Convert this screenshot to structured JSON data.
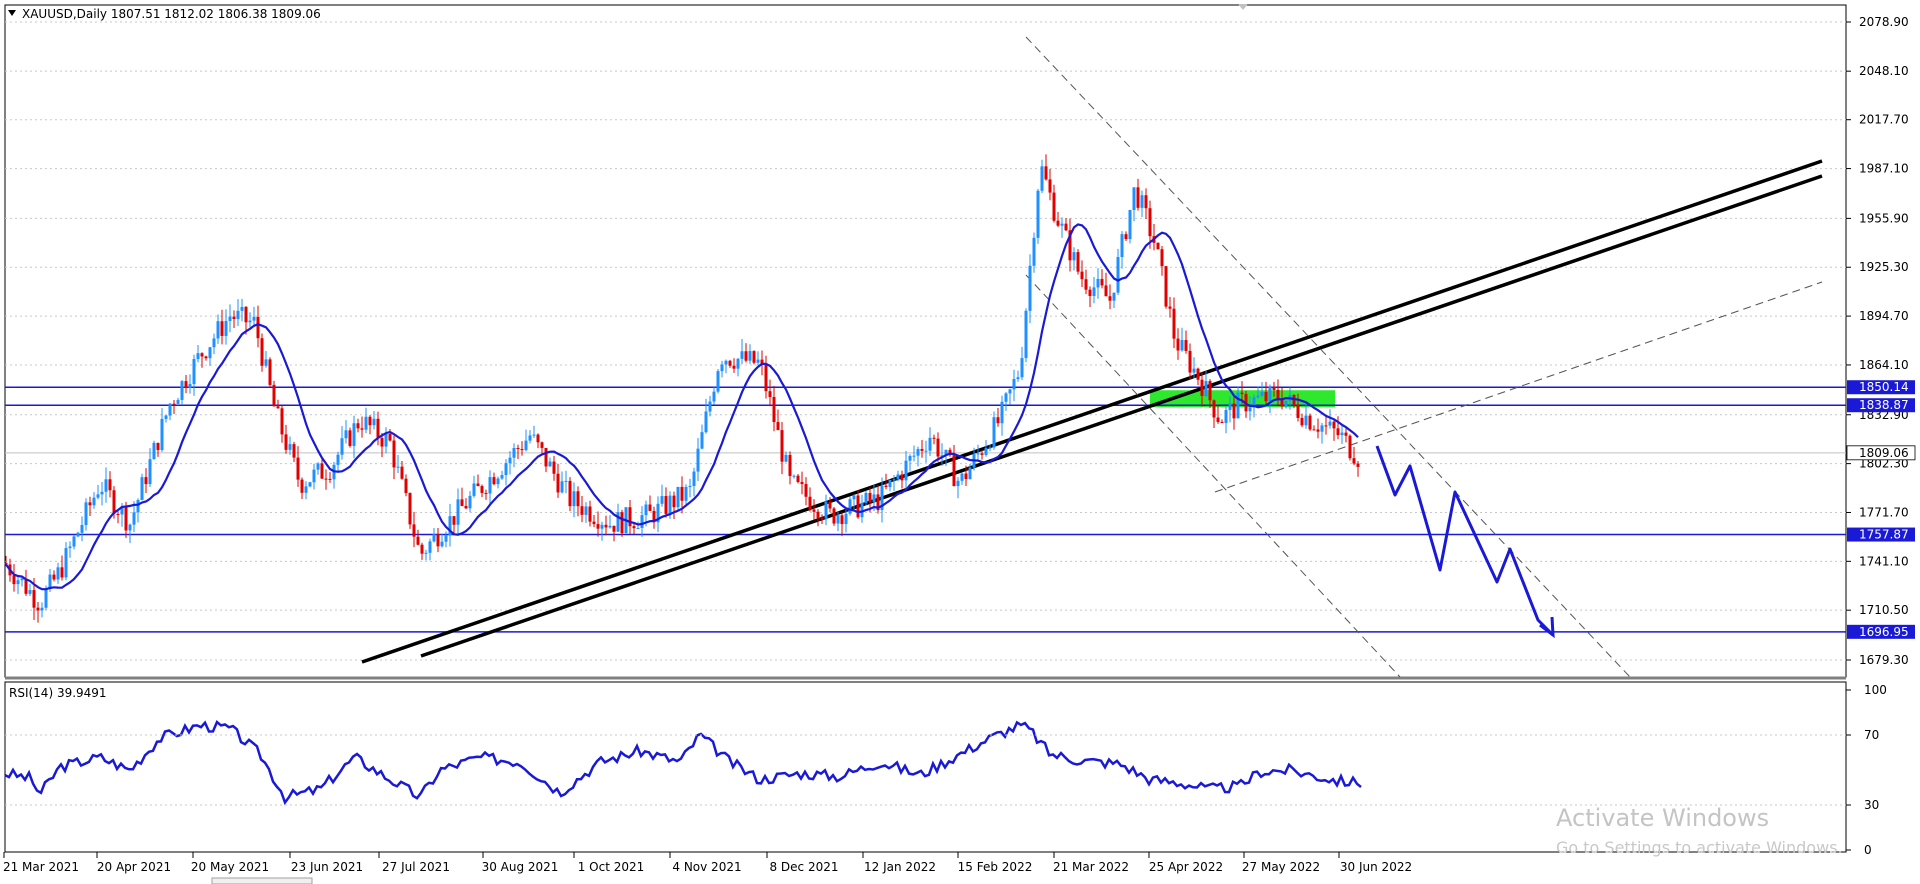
{
  "chart_data": {
    "type": "candlestick",
    "symbol_header": "XAUUSD,Daily  1807.51 1812.02 1806.38 1809.06",
    "ohlc_last": {
      "open": 1807.51,
      "high": 1812.02,
      "low": 1806.38,
      "close": 1809.06
    },
    "price_axis": {
      "ticks": [
        "2078.90",
        "2048.10",
        "2017.70",
        "1987.10",
        "1955.90",
        "1925.30",
        "1894.70",
        "1864.10",
        "1832.90",
        "1802.30",
        "1771.70",
        "1741.10",
        "1710.50",
        "1679.30"
      ],
      "range": [
        1672,
        2090
      ]
    },
    "date_axis": {
      "ticks": [
        "21 Mar 2021",
        "20 Apr 2021",
        "20 May 2021",
        "23 Jun 2021",
        "27 Jul 2021",
        "30 Aug 2021",
        "1 Oct 2021",
        "4 Nov 2021",
        "8 Dec 2021",
        "12 Jan 2022",
        "15 Feb 2022",
        "21 Mar 2022",
        "25 Apr 2022",
        "27 May 2022",
        "30 Jun 2022"
      ]
    },
    "horizontal_levels": [
      {
        "value": 1850.14,
        "label": "1850.14"
      },
      {
        "value": 1838.87,
        "label": "1838.87"
      },
      {
        "value": 1757.87,
        "label": "1757.87"
      },
      {
        "value": 1696.95,
        "label": "1696.95"
      }
    ],
    "current_price": {
      "value": 1809.06,
      "label": "1809.06"
    },
    "series": [
      {
        "kind": "candles",
        "up_color": "#1e90ff",
        "down_color": "#e00000"
      },
      {
        "kind": "moving_average",
        "color": "#1a1ad6"
      }
    ],
    "annotations": {
      "supply_zone_color": "#2ee82e",
      "trendline_color": "#000000",
      "forecast_path_color": "#1a1ad6"
    },
    "rsi": {
      "header": "RSI(14) 39.9491",
      "period": 14,
      "value": 39.9491,
      "ticks": [
        "100",
        "70",
        "30",
        "0"
      ],
      "range": [
        0,
        100
      ],
      "color": "#1a1ad6"
    }
  },
  "watermark": {
    "line1": "Activate Windows",
    "line2": "Go to Settings to activate Windows."
  },
  "colors": {
    "background": "#ffffff",
    "grid": "#c8c8c8",
    "level_line": "#1a1ad6",
    "level_label_bg": "#1a1ad6"
  }
}
